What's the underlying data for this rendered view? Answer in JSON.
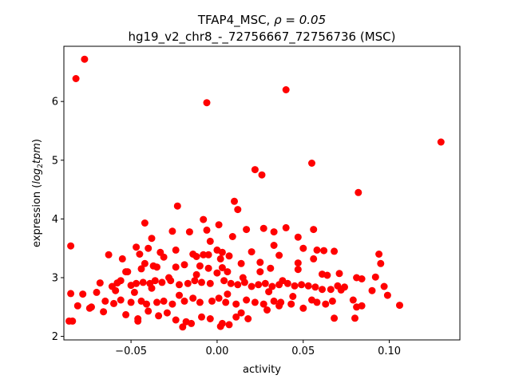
{
  "chart_data": {
    "type": "scatter",
    "title_line1_name": "TFAP4_MSC, ",
    "title_line1_stat": "ρ = 0.05",
    "title_line2": "hg19_v2_chr8_-_72756667_72756736 (MSC)",
    "xlabel": "activity",
    "ylabel_prefix": "expression (",
    "ylabel_math": "log",
    "ylabel_sub": "2",
    "ylabel_math2": "tpm",
    "ylabel_suffix": ")",
    "xlim": [
      -0.089,
      0.141
    ],
    "ylim": [
      1.94,
      6.94
    ],
    "xticks": [
      {
        "value": -0.05,
        "label": "−0.05"
      },
      {
        "value": 0.0,
        "label": "0.00"
      },
      {
        "value": 0.05,
        "label": "0.05"
      },
      {
        "value": 0.1,
        "label": "0.10"
      }
    ],
    "yticks": [
      {
        "value": 2,
        "label": "2"
      },
      {
        "value": 3,
        "label": "3"
      },
      {
        "value": 4,
        "label": "4"
      },
      {
        "value": 5,
        "label": "5"
      },
      {
        "value": 6,
        "label": "6"
      }
    ],
    "marker_color": "#ff0000",
    "grid": false,
    "points": [
      [
        -0.077,
        6.72
      ],
      [
        -0.082,
        6.39
      ],
      [
        -0.006,
        5.98
      ],
      [
        0.04,
        6.2
      ],
      [
        0.13,
        5.31
      ],
      [
        0.055,
        4.95
      ],
      [
        0.022,
        4.84
      ],
      [
        0.026,
        4.75
      ],
      [
        0.082,
        4.45
      ],
      [
        0.01,
        4.3
      ],
      [
        0.012,
        4.16
      ],
      [
        -0.023,
        4.22
      ],
      [
        -0.008,
        3.99
      ],
      [
        -0.042,
        3.93
      ],
      [
        -0.085,
        3.54
      ],
      [
        0.04,
        3.85
      ],
      [
        0.027,
        3.84
      ],
      [
        0.017,
        3.82
      ],
      [
        0.056,
        3.82
      ],
      [
        0.033,
        3.78
      ],
      [
        -0.016,
        3.78
      ],
      [
        -0.006,
        3.81
      ],
      [
        -0.026,
        3.79
      ],
      [
        0.001,
        3.9
      ],
      [
        0.047,
        3.69
      ],
      [
        0.009,
        3.7
      ],
      [
        -0.038,
        3.67
      ],
      [
        -0.004,
        3.62
      ],
      [
        0.033,
        3.55
      ],
      [
        -0.047,
        3.52
      ],
      [
        -0.04,
        3.5
      ],
      [
        -0.024,
        3.47
      ],
      [
        0.05,
        3.5
      ],
      [
        0.058,
        3.47
      ],
      [
        0.062,
        3.46
      ],
      [
        0.068,
        3.45
      ],
      [
        0.0,
        3.47
      ],
      [
        0.003,
        3.43
      ],
      [
        0.02,
        3.44
      ],
      [
        -0.033,
        3.43
      ],
      [
        -0.014,
        3.4
      ],
      [
        -0.045,
        3.4
      ],
      [
        -0.008,
        3.39
      ],
      [
        -0.005,
        3.39
      ],
      [
        0.036,
        3.38
      ],
      [
        0.007,
        3.37
      ],
      [
        -0.012,
        3.36
      ],
      [
        -0.031,
        3.35
      ],
      [
        -0.063,
        3.39
      ],
      [
        -0.055,
        3.32
      ],
      [
        0.002,
        3.32
      ],
      [
        0.056,
        3.32
      ],
      [
        0.094,
        3.4
      ],
      [
        0.095,
        3.24
      ],
      [
        0.014,
        3.24
      ],
      [
        0.025,
        3.26
      ],
      [
        0.047,
        3.25
      ],
      [
        -0.042,
        3.24
      ],
      [
        -0.037,
        3.2
      ],
      [
        -0.019,
        3.22
      ],
      [
        -0.01,
        3.2
      ],
      [
        -0.044,
        3.15
      ],
      [
        -0.052,
        3.1
      ],
      [
        -0.053,
        3.1
      ],
      [
        -0.035,
        3.18
      ],
      [
        -0.024,
        3.18
      ],
      [
        -0.005,
        3.16
      ],
      [
        0.003,
        3.17
      ],
      [
        0.006,
        3.1
      ],
      [
        0.025,
        3.1
      ],
      [
        0.031,
        3.16
      ],
      [
        0.047,
        3.14
      ],
      [
        0.061,
        3.06
      ],
      [
        0.064,
        3.04
      ],
      [
        0.071,
        3.07
      ],
      [
        -0.081,
        2.52
      ],
      [
        -0.085,
        2.73
      ],
      [
        -0.058,
        2.91
      ],
      [
        -0.05,
        2.87
      ],
      [
        -0.061,
        2.85
      ],
      [
        -0.047,
        2.9
      ],
      [
        -0.043,
        2.92
      ],
      [
        -0.039,
        2.9
      ],
      [
        -0.036,
        2.95
      ],
      [
        -0.032,
        2.92
      ],
      [
        -0.027,
        2.95
      ],
      [
        -0.022,
        2.88
      ],
      [
        -0.017,
        2.9
      ],
      [
        -0.013,
        2.95
      ],
      [
        -0.009,
        2.92
      ],
      [
        -0.004,
        2.9
      ],
      [
        0.004,
        2.95
      ],
      [
        0.008,
        2.9
      ],
      [
        0.012,
        2.88
      ],
      [
        0.016,
        2.92
      ],
      [
        0.02,
        2.85
      ],
      [
        0.024,
        2.88
      ],
      [
        0.028,
        2.9
      ],
      [
        0.032,
        2.85
      ],
      [
        0.036,
        2.88
      ],
      [
        0.041,
        2.9
      ],
      [
        0.045,
        2.86
      ],
      [
        0.049,
        2.88
      ],
      [
        0.053,
        2.86
      ],
      [
        0.057,
        2.84
      ],
      [
        0.061,
        2.8
      ],
      [
        0.066,
        2.8
      ],
      [
        0.07,
        2.86
      ],
      [
        0.074,
        2.84
      ],
      [
        0.081,
        3.0
      ],
      [
        0.084,
        2.98
      ],
      [
        0.092,
        3.01
      ],
      [
        0.097,
        2.85
      ],
      [
        0.099,
        2.7
      ],
      [
        0.072,
        2.79
      ],
      [
        -0.068,
        2.91
      ],
      [
        -0.065,
        2.6
      ],
      [
        -0.07,
        2.75
      ],
      [
        -0.059,
        2.78
      ],
      [
        -0.056,
        2.62
      ],
      [
        -0.05,
        2.58
      ],
      [
        -0.044,
        2.6
      ],
      [
        -0.041,
        2.55
      ],
      [
        -0.035,
        2.58
      ],
      [
        -0.031,
        2.6
      ],
      [
        -0.026,
        2.55
      ],
      [
        -0.019,
        2.6
      ],
      [
        -0.014,
        2.65
      ],
      [
        -0.01,
        2.58
      ],
      [
        -0.003,
        2.6
      ],
      [
        0.001,
        2.65
      ],
      [
        0.005,
        2.58
      ],
      [
        0.011,
        2.55
      ],
      [
        0.017,
        2.62
      ],
      [
        0.022,
        2.58
      ],
      [
        0.027,
        2.55
      ],
      [
        0.033,
        2.6
      ],
      [
        0.037,
        2.58
      ],
      [
        0.043,
        2.55
      ],
      [
        0.055,
        2.62
      ],
      [
        0.058,
        2.58
      ],
      [
        0.063,
        2.55
      ],
      [
        0.067,
        2.6
      ],
      [
        0.079,
        2.62
      ],
      [
        0.081,
        2.5
      ],
      [
        0.084,
        2.52
      ],
      [
        0.106,
        2.53
      ],
      [
        -0.074,
        2.48
      ],
      [
        -0.066,
        2.42
      ],
      [
        -0.053,
        2.37
      ],
      [
        -0.046,
        2.3
      ],
      [
        -0.04,
        2.43
      ],
      [
        -0.034,
        2.35
      ],
      [
        -0.029,
        2.4
      ],
      [
        -0.024,
        2.28
      ],
      [
        -0.018,
        2.25
      ],
      [
        -0.015,
        2.22
      ],
      [
        -0.009,
        2.33
      ],
      [
        -0.004,
        2.3
      ],
      [
        0.003,
        2.22
      ],
      [
        0.007,
        2.2
      ],
      [
        0.002,
        2.17
      ],
      [
        0.014,
        2.4
      ],
      [
        0.018,
        2.3
      ],
      [
        0.029,
        2.45
      ],
      [
        0.036,
        2.52
      ],
      [
        0.05,
        2.48
      ],
      [
        0.068,
        2.31
      ],
      [
        0.08,
        2.31
      ],
      [
        -0.084,
        2.26
      ],
      [
        -0.086,
        2.26
      ],
      [
        -0.046,
        2.26
      ],
      [
        -0.02,
        2.16
      ],
      [
        0.011,
        2.33
      ],
      [
        -0.073,
        2.5
      ],
      [
        -0.078,
        2.72
      ],
      [
        -0.06,
        2.56
      ],
      [
        -0.038,
        2.82
      ],
      [
        -0.028,
        3.0
      ],
      [
        -0.012,
        3.05
      ],
      [
        0.0,
        3.08
      ],
      [
        0.015,
        3.0
      ],
      [
        0.038,
        2.95
      ],
      [
        -0.048,
        2.75
      ],
      [
        -0.022,
        2.7
      ],
      [
        0.006,
        2.72
      ],
      [
        0.03,
        2.76
      ],
      [
        0.044,
        2.68
      ],
      [
        -0.056,
        2.95
      ],
      [
        0.09,
        2.78
      ]
    ]
  }
}
